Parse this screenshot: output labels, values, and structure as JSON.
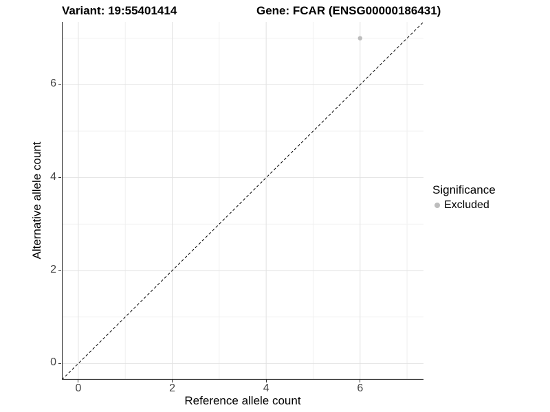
{
  "titles": {
    "variant": "Variant: 19:55401414",
    "gene": "Gene: FCAR (ENSG00000186431)"
  },
  "axes": {
    "x": {
      "label": "Reference allele count",
      "tick_labels": [
        "0",
        "2",
        "4",
        "6"
      ]
    },
    "y": {
      "label": "Alternative allele count",
      "tick_labels": [
        "0",
        "2",
        "4",
        "6"
      ]
    }
  },
  "legend": {
    "title": "Significance",
    "items": [
      {
        "label": "Excluded",
        "color": "#bdbdbd"
      }
    ]
  },
  "chart_data": {
    "type": "scatter",
    "title": "Variant: 19:55401414 | Gene: FCAR (ENSG00000186431)",
    "xlabel": "Reference allele count",
    "ylabel": "Alternative allele count",
    "xlim": [
      -0.35,
      7.35
    ],
    "ylim": [
      -0.35,
      7.35
    ],
    "x_ticks": [
      0,
      2,
      4,
      6
    ],
    "y_ticks": [
      0,
      2,
      4,
      6
    ],
    "grid_major": [
      0,
      2,
      4,
      6
    ],
    "grid_minor": [
      1,
      3,
      5,
      7
    ],
    "series": [
      {
        "name": "Excluded",
        "color": "#bdbdbd",
        "point_radius": 3.2,
        "points": [
          [
            6,
            7
          ]
        ]
      }
    ],
    "reference_line": {
      "type": "identity",
      "equation": "y = x",
      "style": "dashed",
      "color": "#000000"
    },
    "legend_position": "right",
    "grid": "on",
    "colors": {
      "grid_major": "#e2e2e2",
      "grid_minor": "#f0f0f0",
      "axis_line": "#2e2e2e",
      "tick_mark": "#333333"
    }
  }
}
